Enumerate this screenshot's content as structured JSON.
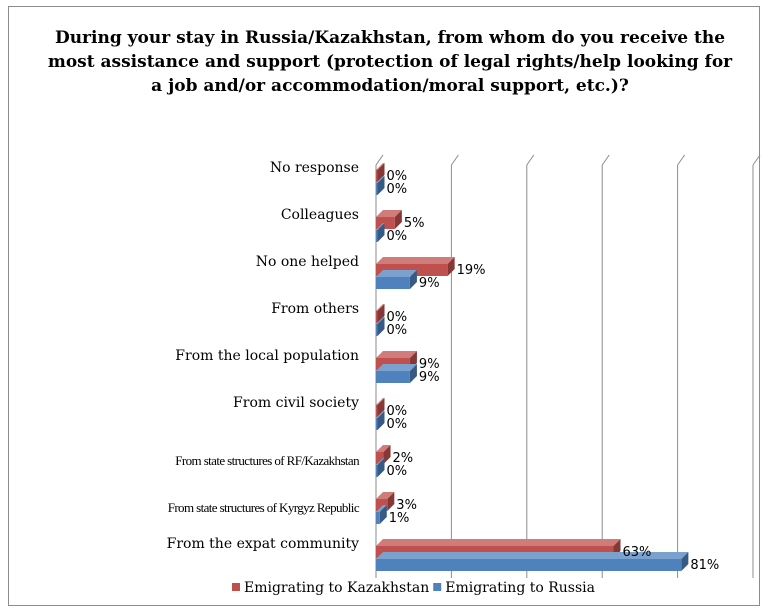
{
  "chart_data": {
    "type": "bar",
    "orientation": "horizontal",
    "style": "3d",
    "title": "During your stay in Russia/Kazakhstan, from whom do you receive the most assistance and support (protection of legal rights/help looking for a job and/or accommodation/moral support, etc.)?",
    "categories": [
      "No response",
      "Colleagues",
      "No one helped",
      "From others",
      "From the local population",
      "From civil society",
      "From state structures of RF/Kazakhstan",
      "From state structures of Kyrgyz Republic",
      "From the expat community"
    ],
    "series": [
      {
        "name": "Emigrating to Kazakhstan",
        "color": "#c0504d",
        "values": [
          0,
          5,
          19,
          0,
          9,
          0,
          2,
          3,
          63
        ],
        "labels": [
          "0%",
          "5%",
          "19%",
          "0%",
          "9%",
          "0%",
          "2%",
          "3%",
          "63%"
        ]
      },
      {
        "name": "Emigrating to Russia",
        "color": "#4f81bd",
        "values": [
          0,
          0,
          9,
          0,
          9,
          0,
          0,
          1,
          81
        ],
        "labels": [
          "0%",
          "0%",
          "9%",
          "0%",
          "9%",
          "0%",
          "0%",
          "1%",
          "81%"
        ]
      }
    ],
    "xlim": [
      0,
      100
    ],
    "grid": true,
    "legend_position": "bottom"
  }
}
